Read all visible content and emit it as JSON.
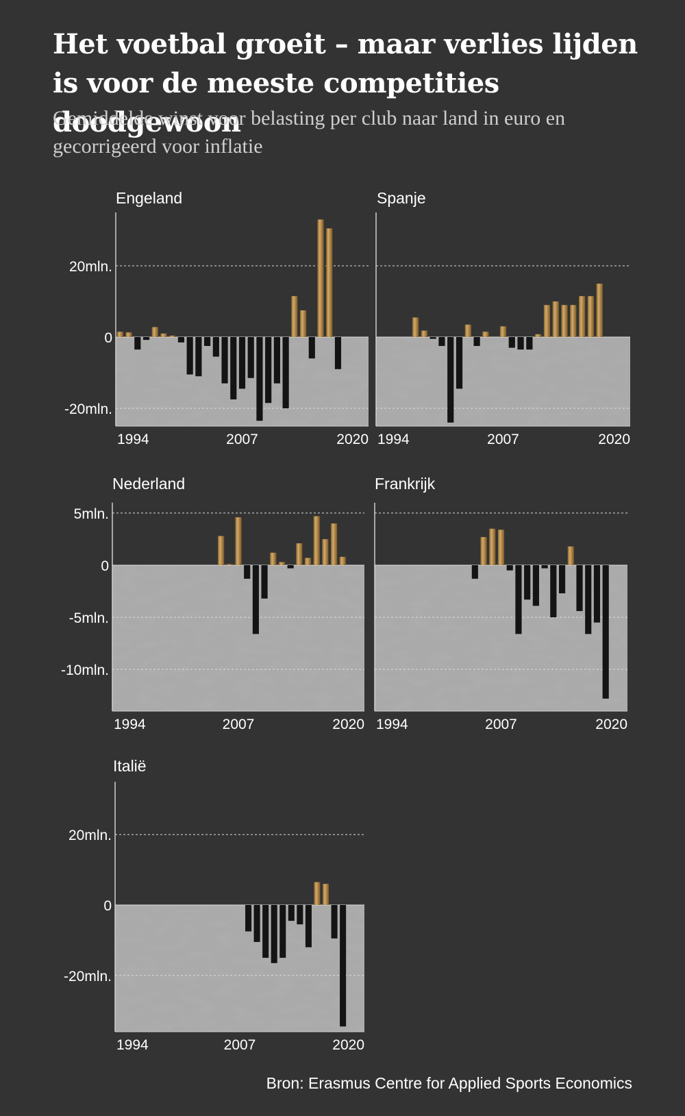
{
  "title": "Het voetbal groeit – maar verlies lijden is voor de meeste competities doodgewoon",
  "subtitle": "Gemiddelde winst voor belasting per club naar land in euro en gecorrigeerd voor inflatie",
  "source": "Bron: Erasmus Centre for Applied Sports Economics",
  "colors": {
    "positive": "#b0874a",
    "negative": "#141414",
    "plot_bg": "#a8a8a8",
    "page_bg": "#333333",
    "grid": "#dddddd"
  },
  "chart_data": [
    {
      "type": "bar",
      "title": "Engeland",
      "x": [
        1993,
        1994,
        1995,
        1996,
        1997,
        1998,
        1999,
        2000,
        2001,
        2002,
        2003,
        2004,
        2005,
        2006,
        2007,
        2008,
        2009,
        2010,
        2011,
        2012,
        2013,
        2014,
        2015,
        2016,
        2017,
        2018,
        2019,
        2020,
        2021
      ],
      "values": [
        1.5,
        1.3,
        -3.5,
        -0.8,
        2.8,
        1.0,
        0.4,
        -1.5,
        -10.5,
        -11,
        -2.5,
        -5.5,
        -13,
        -17.5,
        -14.5,
        -11.5,
        -23.5,
        -18.5,
        -13,
        -20,
        11.5,
        7.5,
        -6,
        33,
        30.5,
        -9,
        null,
        null,
        null
      ],
      "ylim": [
        -25,
        35
      ],
      "yticks": [
        {
          "value": 20,
          "label": "20mln."
        },
        {
          "value": 0,
          "label": "0"
        },
        {
          "value": -20,
          "label": "-20mln."
        }
      ],
      "xticks": [
        {
          "value": 1994,
          "label": "1994"
        },
        {
          "value": 2007,
          "label": "2007"
        },
        {
          "value": 2020,
          "label": "2020"
        }
      ],
      "grid": true
    },
    {
      "type": "bar",
      "title": "Spanje",
      "x": [
        1993,
        1994,
        1995,
        1996,
        1997,
        1998,
        1999,
        2000,
        2001,
        2002,
        2003,
        2004,
        2005,
        2006,
        2007,
        2008,
        2009,
        2010,
        2011,
        2012,
        2013,
        2014,
        2015,
        2016,
        2017,
        2018,
        2019,
        2020,
        2021
      ],
      "values": [
        null,
        null,
        null,
        null,
        5.5,
        1.8,
        -0.5,
        -2.5,
        -24,
        -14.5,
        3.5,
        -2.5,
        1.5,
        null,
        3,
        -3,
        -3.5,
        -3.5,
        0.8,
        9,
        10,
        9,
        9,
        11.5,
        11.5,
        15,
        null,
        null,
        null
      ],
      "ylim": [
        -25,
        35
      ],
      "yticks": [
        {
          "value": 20,
          "label": ""
        },
        {
          "value": 0,
          "label": ""
        },
        {
          "value": -20,
          "label": ""
        }
      ],
      "xticks": [
        {
          "value": 1994,
          "label": "1994"
        },
        {
          "value": 2007,
          "label": "2007"
        },
        {
          "value": 2020,
          "label": "2020"
        }
      ],
      "grid": true
    },
    {
      "type": "bar",
      "title": "Nederland",
      "x": [
        1993,
        1994,
        1995,
        1996,
        1997,
        1998,
        1999,
        2000,
        2001,
        2002,
        2003,
        2004,
        2005,
        2006,
        2007,
        2008,
        2009,
        2010,
        2011,
        2012,
        2013,
        2014,
        2015,
        2016,
        2017,
        2018,
        2019,
        2020,
        2021
      ],
      "values": [
        null,
        null,
        null,
        null,
        null,
        null,
        null,
        null,
        null,
        null,
        null,
        null,
        2.8,
        0.1,
        4.6,
        -1.3,
        -6.6,
        -3.2,
        1.2,
        0.3,
        -0.3,
        2.1,
        0.7,
        4.7,
        2.5,
        4,
        0.8,
        null,
        null
      ],
      "ylim": [
        -14,
        6
      ],
      "yticks": [
        {
          "value": 5,
          "label": "5mln."
        },
        {
          "value": 0,
          "label": "0"
        },
        {
          "value": -5,
          "label": "-5mln."
        },
        {
          "value": -10,
          "label": "-10mln."
        }
      ],
      "xticks": [
        {
          "value": 1994,
          "label": "1994"
        },
        {
          "value": 2007,
          "label": "2007"
        },
        {
          "value": 2020,
          "label": "2020"
        }
      ],
      "grid": true
    },
    {
      "type": "bar",
      "title": "Frankrijk",
      "x": [
        1993,
        1994,
        1995,
        1996,
        1997,
        1998,
        1999,
        2000,
        2001,
        2002,
        2003,
        2004,
        2005,
        2006,
        2007,
        2008,
        2009,
        2010,
        2011,
        2012,
        2013,
        2014,
        2015,
        2016,
        2017,
        2018,
        2019,
        2020,
        2021
      ],
      "values": [
        null,
        null,
        null,
        null,
        null,
        null,
        null,
        null,
        null,
        null,
        null,
        -1.3,
        2.7,
        3.5,
        3.4,
        -0.5,
        -6.6,
        -3.3,
        -3.9,
        -0.3,
        -5,
        -2.7,
        1.8,
        -4.4,
        -6.6,
        -5.5,
        -12.8,
        null,
        null
      ],
      "ylim": [
        -14,
        6
      ],
      "yticks": [
        {
          "value": 5,
          "label": ""
        },
        {
          "value": 0,
          "label": ""
        },
        {
          "value": -5,
          "label": ""
        },
        {
          "value": -10,
          "label": ""
        }
      ],
      "xticks": [
        {
          "value": 1994,
          "label": "1994"
        },
        {
          "value": 2007,
          "label": "2007"
        },
        {
          "value": 2020,
          "label": "2020"
        }
      ],
      "grid": true
    },
    {
      "type": "bar",
      "title": "Italië",
      "x": [
        1993,
        1994,
        1995,
        1996,
        1997,
        1998,
        1999,
        2000,
        2001,
        2002,
        2003,
        2004,
        2005,
        2006,
        2007,
        2008,
        2009,
        2010,
        2011,
        2012,
        2013,
        2014,
        2015,
        2016,
        2017,
        2018,
        2019,
        2020,
        2021
      ],
      "values": [
        null,
        null,
        null,
        null,
        null,
        null,
        null,
        null,
        null,
        null,
        null,
        null,
        null,
        null,
        null,
        -7.5,
        -10.5,
        -15,
        -16.5,
        -15,
        -4.5,
        -5.5,
        -12,
        6.5,
        6,
        -9.5,
        -34.5,
        null,
        null
      ],
      "ylim": [
        -36,
        35
      ],
      "yticks": [
        {
          "value": 20,
          "label": "20mln."
        },
        {
          "value": 0,
          "label": "0"
        },
        {
          "value": -20,
          "label": "-20mln."
        }
      ],
      "xticks": [
        {
          "value": 1994,
          "label": "1994"
        },
        {
          "value": 2007,
          "label": "2007"
        },
        {
          "value": 2020,
          "label": "2020"
        }
      ],
      "grid": true
    }
  ]
}
